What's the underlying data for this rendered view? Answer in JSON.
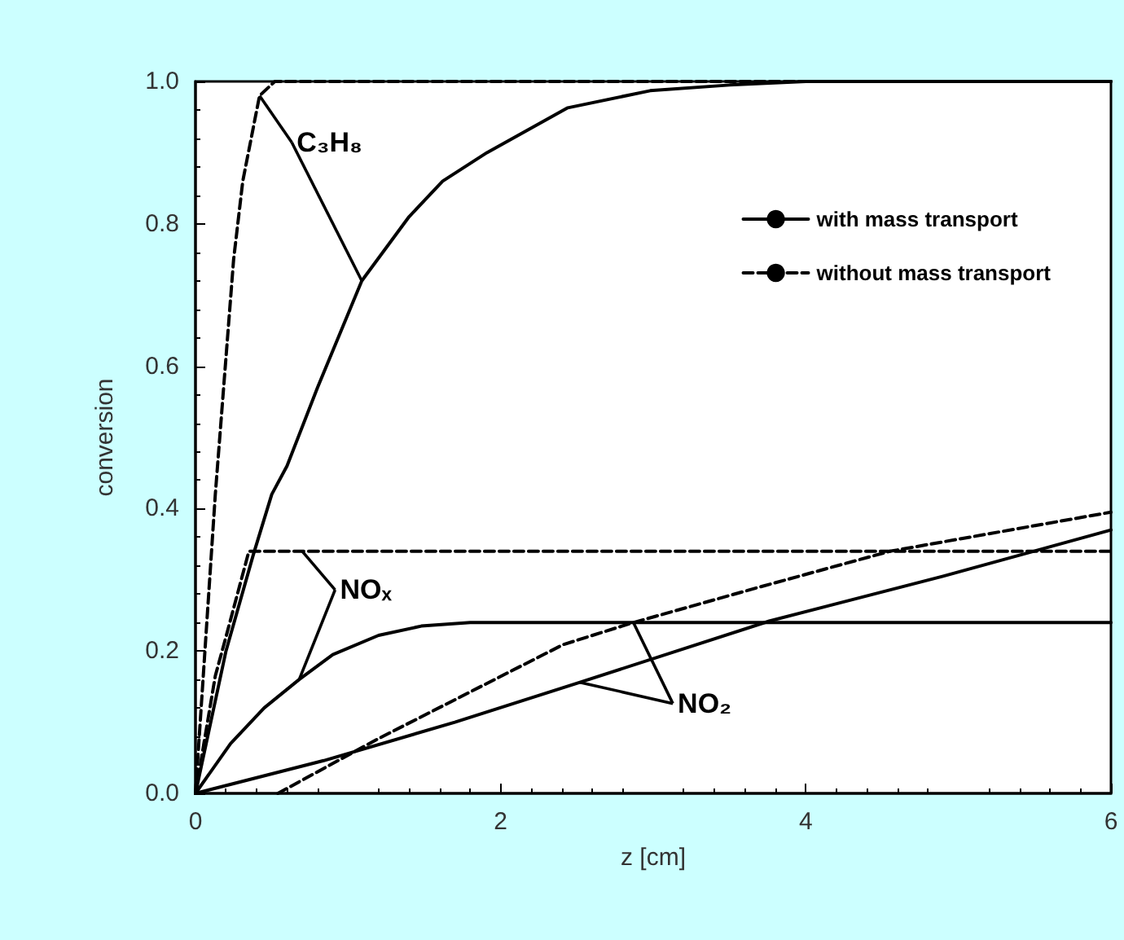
{
  "chart_data": {
    "type": "line",
    "xlabel": "z [cm]",
    "ylabel": "conversion",
    "xlim": [
      0,
      6
    ],
    "xticks": [
      0,
      2,
      4,
      6
    ],
    "ylim": [
      0,
      1
    ],
    "yticks": [
      {
        "value": 0,
        "label": "0.0"
      },
      {
        "value": 0.2,
        "label": "0.2"
      },
      {
        "value": 0.4,
        "label": "0.4"
      },
      {
        "value": 0.6,
        "label": "0.6"
      },
      {
        "value": 0.8,
        "label": "0.8"
      },
      {
        "value": 1,
        "label": "1.0"
      }
    ],
    "legend": "top right",
    "grid": false,
    "marker": "none",
    "annotations": [
      {
        "text": "C₃H₈",
        "x": 1.09,
        "y": 0.72
      },
      {
        "text": "NOₓ",
        "x": 0.68,
        "y": 0.16
      },
      {
        "text": "NO₂",
        "x": 2.52,
        "y": 0.156
      }
    ],
    "series": [
      {
        "name": "without mass transport",
        "color": "#000000",
        "line_style": "dashed",
        "x": [
          0,
          0.13,
          0.25,
          0.31,
          0.42,
          0.52,
          6
        ],
        "values": [
          0,
          0.42,
          0.75,
          0.86,
          0.98,
          1.0,
          1.0
        ]
      },
      {
        "name": "with mass transport",
        "color": "#000000",
        "line_style": "solid",
        "x": [
          0,
          0.2,
          0.38,
          0.5,
          0.6,
          0.8,
          1.09,
          1.4,
          1.62,
          1.91,
          2.44,
          2.98,
          3.5,
          4,
          6
        ],
        "values": [
          0,
          0.2,
          0.336,
          0.42,
          0.46,
          0.57,
          0.72,
          0.81,
          0.86,
          0.9,
          0.963,
          0.987,
          0.995,
          1.0,
          1.0
        ]
      },
      {
        "color": "#000000",
        "line_style": "dashed",
        "x": [
          0,
          0.13,
          0.2,
          0.35,
          0.7,
          6
        ],
        "values": [
          0,
          0.165,
          0.22,
          0.34,
          0.34,
          0.34
        ]
      },
      {
        "color": "#000000",
        "line_style": "solid",
        "x": [
          0,
          0.23,
          0.45,
          0.68,
          0.9,
          1.2,
          1.48,
          1.8,
          6
        ],
        "values": [
          0,
          0.07,
          0.12,
          0.16,
          0.195,
          0.222,
          0.235,
          0.24,
          0.24
        ]
      },
      {
        "color": "#000000",
        "line_style": "dashed",
        "x": [
          0.54,
          1.2,
          2.41,
          2.87,
          3.7,
          4.55,
          6
        ],
        "values": [
          0,
          0.077,
          0.209,
          0.24,
          0.29,
          0.34,
          0.395
        ]
      },
      {
        "color": "#000000",
        "line_style": "solid",
        "x": [
          0,
          0.84,
          1.7,
          2.52,
          3.76,
          4.9,
          6
        ],
        "values": [
          0,
          0.046,
          0.1,
          0.156,
          0.242,
          0.305,
          0.37
        ]
      }
    ]
  }
}
